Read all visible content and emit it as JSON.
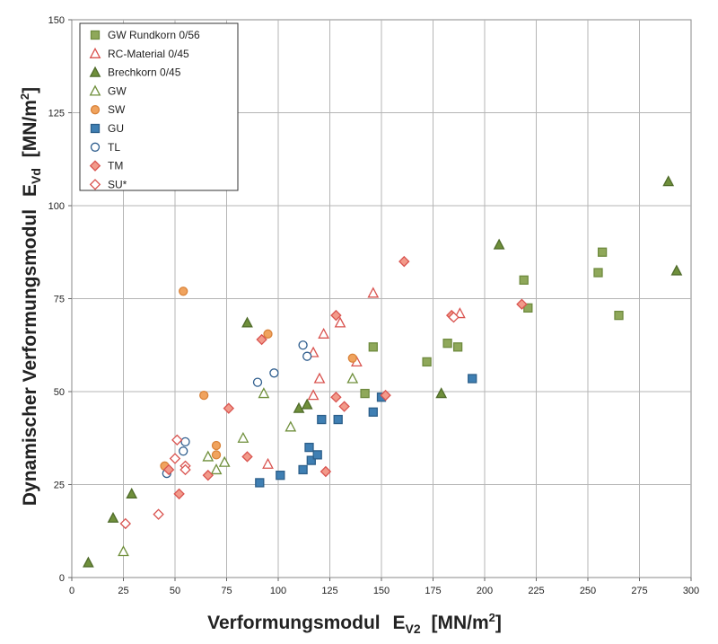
{
  "chart_data": {
    "type": "scatter",
    "title": "",
    "xlabel": "Verformungsmodul",
    "xlabel_sub": "V2",
    "xlabel_unit": "[MN/m",
    "xlabel_unit_sup": "2",
    "xlabel_unit_end": "]",
    "ylabel": "Dynamischer Verformungsmodul",
    "ylabel_sub": "Vd",
    "ylabel_unit": "[MN/m",
    "ylabel_unit_sup": "2",
    "ylabel_unit_end": "]",
    "xlim": [
      0,
      300
    ],
    "ylim": [
      0,
      150
    ],
    "xticks": [
      0,
      25,
      50,
      75,
      100,
      125,
      150,
      175,
      200,
      225,
      250,
      275,
      300
    ],
    "yticks": [
      0,
      25,
      50,
      75,
      100,
      125,
      150
    ],
    "grid": true,
    "legend_position": "top-left",
    "series": [
      {
        "name": "GW Rundkorn 0/56",
        "marker": "square-filled",
        "color": "#8fa85a",
        "stroke": "#6e8a3e",
        "points": [
          [
            146,
            62
          ],
          [
            142,
            49.5
          ],
          [
            172,
            58
          ],
          [
            182,
            63
          ],
          [
            187,
            62
          ],
          [
            219,
            80
          ],
          [
            221,
            72.5
          ],
          [
            255,
            82
          ],
          [
            257,
            87.5
          ],
          [
            265,
            70.5
          ]
        ]
      },
      {
        "name": "RC-Material 0/45",
        "marker": "triangle-open",
        "color": "#d9534f",
        "stroke": "#c0504d",
        "points": [
          [
            95,
            30.5
          ],
          [
            117,
            49
          ],
          [
            117,
            60.5
          ],
          [
            120,
            53.5
          ],
          [
            122,
            65.5
          ],
          [
            130,
            68.5
          ],
          [
            138,
            58
          ],
          [
            146,
            76.5
          ],
          [
            188,
            71
          ]
        ]
      },
      {
        "name": "Brechkorn 0/45",
        "marker": "triangle-filled",
        "color": "#6f8f3b",
        "stroke": "#4f6b2a",
        "points": [
          [
            8,
            4
          ],
          [
            20,
            16
          ],
          [
            29,
            22.5
          ],
          [
            85,
            68.5
          ],
          [
            114,
            46.5
          ],
          [
            110,
            45.5
          ],
          [
            179,
            49.5
          ],
          [
            207,
            89.5
          ],
          [
            289,
            106.5
          ],
          [
            293,
            82.5
          ]
        ]
      },
      {
        "name": "GW",
        "marker": "triangle-open",
        "color": "#6f8f3b",
        "stroke": "#6f8f3b",
        "points": [
          [
            25,
            7
          ],
          [
            66,
            32.5
          ],
          [
            70,
            29
          ],
          [
            74,
            31
          ],
          [
            83,
            37.5
          ],
          [
            93,
            49.5
          ],
          [
            106,
            40.5
          ],
          [
            136,
            53.5
          ]
        ]
      },
      {
        "name": "SW",
        "marker": "circle-filled",
        "color": "#f0a35e",
        "stroke": "#d9833a",
        "points": [
          [
            45,
            30
          ],
          [
            54,
            77
          ],
          [
            64,
            49
          ],
          [
            70,
            35.5
          ],
          [
            70,
            33
          ],
          [
            95,
            65.5
          ],
          [
            136,
            59
          ]
        ]
      },
      {
        "name": "GU",
        "marker": "square-filled",
        "color": "#3f7fb3",
        "stroke": "#2c5f8a",
        "points": [
          [
            91,
            25.5
          ],
          [
            101,
            27.5
          ],
          [
            112,
            29
          ],
          [
            115,
            35
          ],
          [
            116,
            31.5
          ],
          [
            119,
            33
          ],
          [
            121,
            42.5
          ],
          [
            129,
            42.5
          ],
          [
            146,
            44.5
          ],
          [
            150,
            48.5
          ],
          [
            194,
            53.5
          ]
        ]
      },
      {
        "name": "TL",
        "marker": "circle-open",
        "color": "#2f5e8e",
        "stroke": "#2f5e8e",
        "points": [
          [
            46,
            28
          ],
          [
            54,
            34
          ],
          [
            55,
            36.5
          ],
          [
            90,
            52.5
          ],
          [
            98,
            55
          ],
          [
            112,
            62.5
          ],
          [
            114,
            59.5
          ]
        ]
      },
      {
        "name": "TM",
        "marker": "diamond-filled",
        "color": "#f29a8a",
        "stroke": "#d9534f",
        "points": [
          [
            47,
            29
          ],
          [
            52,
            22.5
          ],
          [
            66,
            27.5
          ],
          [
            76,
            45.5
          ],
          [
            85,
            32.5
          ],
          [
            92,
            64
          ],
          [
            123,
            28.5
          ],
          [
            128,
            70.5
          ],
          [
            128,
            48.5
          ],
          [
            132,
            46
          ],
          [
            152,
            49
          ],
          [
            161,
            85
          ],
          [
            184,
            70.5
          ],
          [
            218,
            73.5
          ]
        ]
      },
      {
        "name": "SU*",
        "marker": "diamond-open",
        "color": "#d9534f",
        "stroke": "#d9534f",
        "points": [
          [
            26,
            14.5
          ],
          [
            42,
            17
          ],
          [
            51,
            37
          ],
          [
            50,
            32
          ],
          [
            55,
            30
          ],
          [
            55,
            29
          ],
          [
            185,
            70
          ]
        ]
      }
    ]
  }
}
